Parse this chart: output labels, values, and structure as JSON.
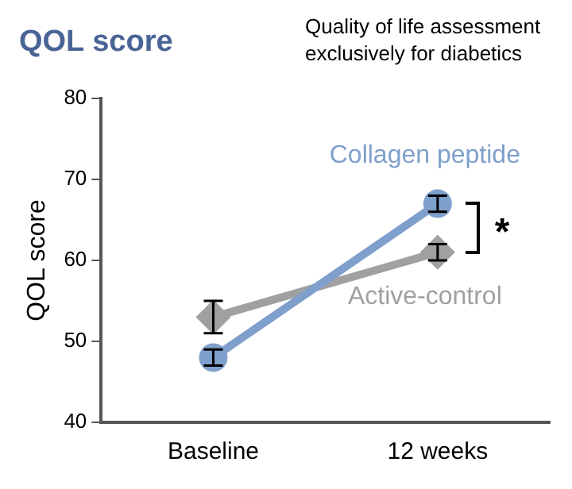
{
  "chart_data": {
    "type": "line",
    "title": "QOL score",
    "subtitle": "Quality of life assessment exclusively for diabetics",
    "ylabel": "QOL score",
    "categories": [
      "Baseline",
      "12 weeks"
    ],
    "series": [
      {
        "name": "Collagen peptide",
        "color": "#7f9fcc",
        "values": [
          48,
          67
        ],
        "errors": [
          1,
          1
        ],
        "marker": "circle"
      },
      {
        "name": "Active-control",
        "color": "#a0a0a0",
        "values": [
          53,
          61
        ],
        "errors": [
          2,
          1
        ],
        "marker": "diamond"
      }
    ],
    "ylim": [
      40,
      80
    ],
    "yticks": [
      40,
      50,
      60,
      70,
      80
    ],
    "grid": false,
    "legend": false,
    "annotations": [
      {
        "text": "*",
        "x": "12 weeks",
        "y": 64
      }
    ]
  }
}
